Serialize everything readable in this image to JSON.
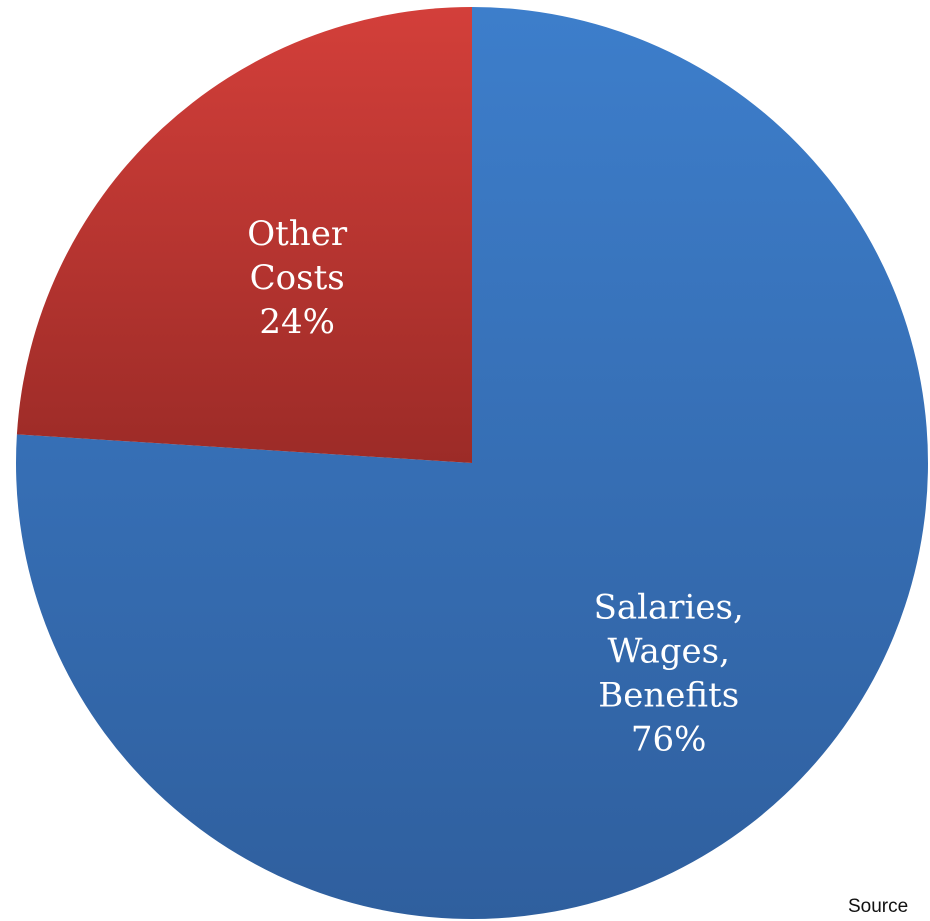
{
  "chart_data": {
    "type": "pie",
    "start_angle_deg": 0,
    "direction": "clockwise",
    "slices": [
      {
        "label_lines": [
          "Salaries,",
          "Wages,",
          "Benefits",
          "76%"
        ],
        "value": 76,
        "color_top": "#3d7ecb",
        "color_bottom": "#2f5f9e"
      },
      {
        "label_lines": [
          "Other",
          "Costs",
          "24%"
        ],
        "value": 24,
        "color_top": "#d33f3a",
        "color_bottom": "#9c2b27"
      }
    ]
  },
  "footer": {
    "source_text": "Source"
  }
}
